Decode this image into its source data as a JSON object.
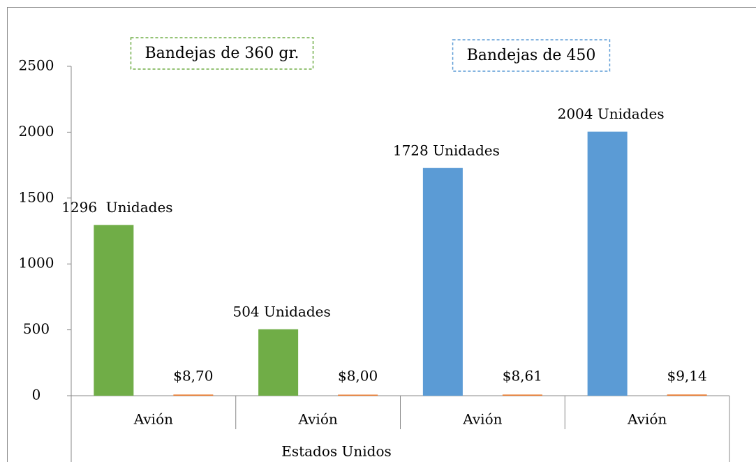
{
  "chart_data": {
    "type": "bar",
    "categories": [
      "Avión",
      "Avión",
      "Avión",
      "Avión"
    ],
    "group_label": "Estados Unidos",
    "annotations": [
      {
        "text": "Bandejas de 360 gr.",
        "color": "#70ad47"
      },
      {
        "text": "Bandejas de 450",
        "color": "#5b9bd5"
      }
    ],
    "series": [
      {
        "colors": [
          "#70ad47",
          "#70ad47",
          "#5b9bd5",
          "#5b9bd5"
        ],
        "values": [
          1296,
          504,
          1728,
          2004
        ],
        "value_labels": [
          "1296  Unidades",
          "504 Unidades",
          "1728 Unidades",
          "2004 Unidades"
        ]
      },
      {
        "color": "#ed7d31",
        "values": [
          8.7,
          8.0,
          8.61,
          9.14
        ],
        "value_labels": [
          "$8,70",
          "$8,00",
          "$8,61",
          "$9,14"
        ]
      }
    ],
    "ylim": [
      0,
      2500
    ],
    "yticks": [
      0,
      500,
      1000,
      1500,
      2000,
      2500
    ]
  }
}
